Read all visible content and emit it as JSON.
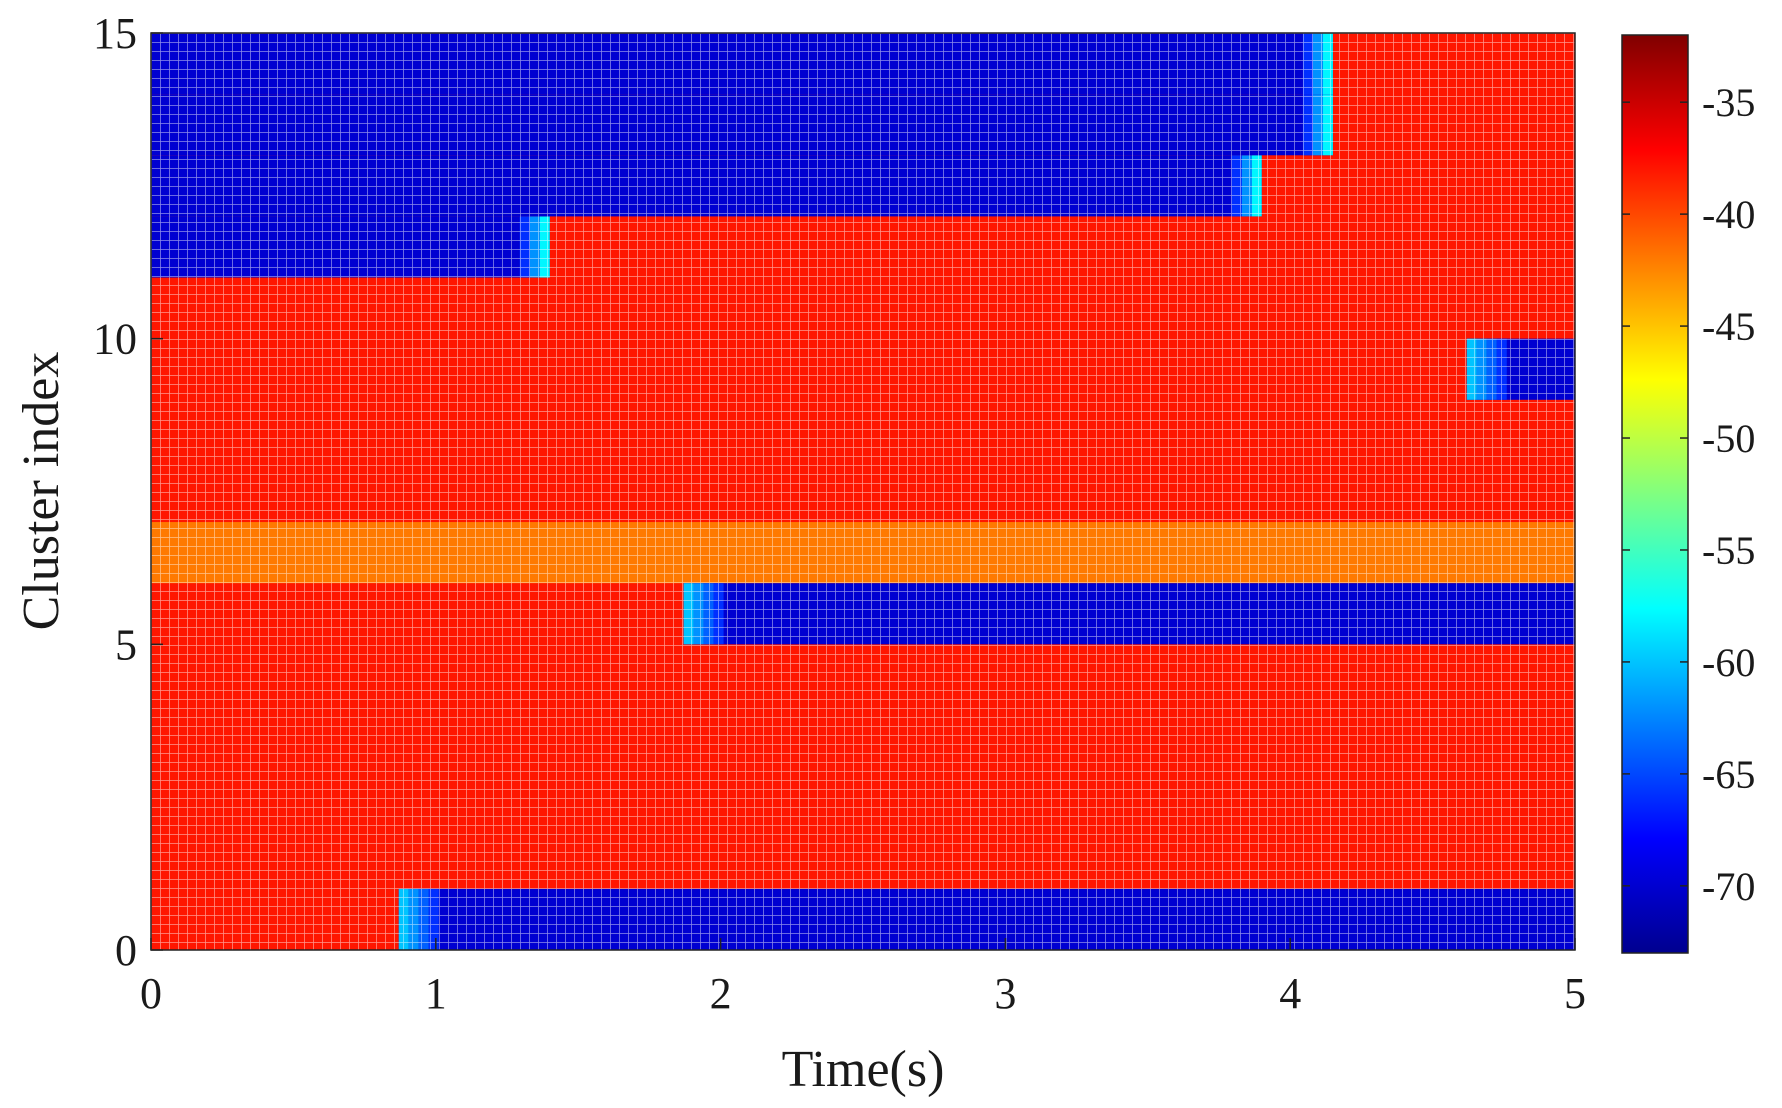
{
  "chart_data": {
    "type": "heatmap",
    "title": "",
    "xlabel": "Time(s)",
    "ylabel": "Cluster index",
    "xlim": [
      0,
      5
    ],
    "ylim": [
      0,
      15
    ],
    "x_ticks": [
      0,
      1,
      2,
      3,
      4,
      5
    ],
    "y_ticks": [
      0,
      5,
      10,
      15
    ],
    "grid": true,
    "colormap": "jet",
    "colorbar": {
      "position": "right",
      "range": [
        -73,
        -32
      ],
      "ticks": [
        -35,
        -40,
        -45,
        -50,
        -55,
        -60,
        -65,
        -70
      ]
    },
    "background_level": -38,
    "weak_segments": [
      {
        "cluster_row": [
          0,
          1
        ],
        "t_start": 0.87,
        "t_end": 5.0,
        "level": -70
      },
      {
        "cluster_row": [
          5,
          6
        ],
        "t_start": 1.87,
        "t_end": 5.0,
        "level": -70
      },
      {
        "cluster_row": [
          9,
          10
        ],
        "t_start": 4.62,
        "t_end": 5.0,
        "level": -70
      },
      {
        "cluster_row": [
          11,
          12
        ],
        "t_start": 0.0,
        "t_end": 1.4,
        "level": -70
      },
      {
        "cluster_row": [
          12,
          13
        ],
        "t_start": 0.0,
        "t_end": 3.9,
        "level": -70
      },
      {
        "cluster_row": [
          13,
          14
        ],
        "t_start": 0.0,
        "t_end": 4.15,
        "level": -70
      },
      {
        "cluster_row": [
          14,
          15
        ],
        "t_start": 0.0,
        "t_end": 4.15,
        "level": -70
      }
    ],
    "moderate_band": {
      "cluster_row": [
        6,
        7
      ],
      "level": -42
    }
  }
}
